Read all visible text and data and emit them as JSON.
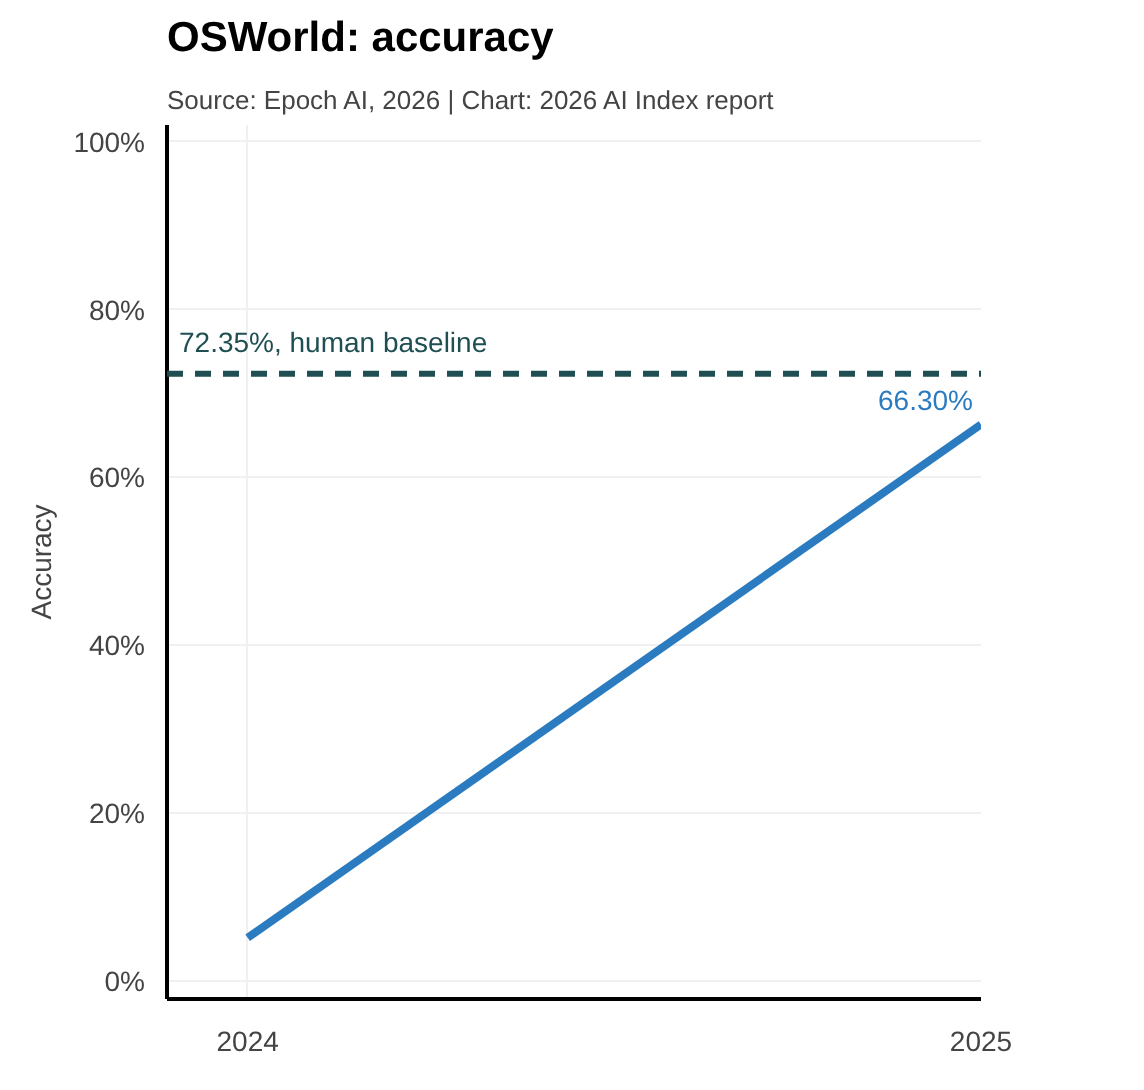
{
  "chart_data": {
    "type": "line",
    "title": "OSWorld: accuracy",
    "subtitle": "Source: Epoch AI, 2026 | Chart: 2026 AI Index report",
    "ylabel": "Accuracy",
    "x": [
      2024,
      2025
    ],
    "series": [
      {
        "color": "#2a7bbf",
        "values": [
          5.1,
          66.3
        ],
        "value_labels": [
          null,
          "66.30%"
        ]
      }
    ],
    "xlim": [
      2023.89,
      2025
    ],
    "xticks": [
      2024,
      2025
    ],
    "ylim": [
      -2.2,
      102
    ],
    "yticks": [
      {
        "value": 0,
        "label": "0%"
      },
      {
        "value": 20,
        "label": "20%"
      },
      {
        "value": 40,
        "label": "40%"
      },
      {
        "value": 60,
        "label": "60%"
      },
      {
        "value": 80,
        "label": "80%"
      },
      {
        "value": 100,
        "label": "100%"
      }
    ],
    "ref_lines": [
      {
        "axis": "y",
        "value": 72.35,
        "label": "72.35%, human baseline",
        "color": "#1f4f52",
        "line_style": "dashed"
      }
    ],
    "grid": true,
    "marker": "none",
    "line_style": "solid"
  }
}
